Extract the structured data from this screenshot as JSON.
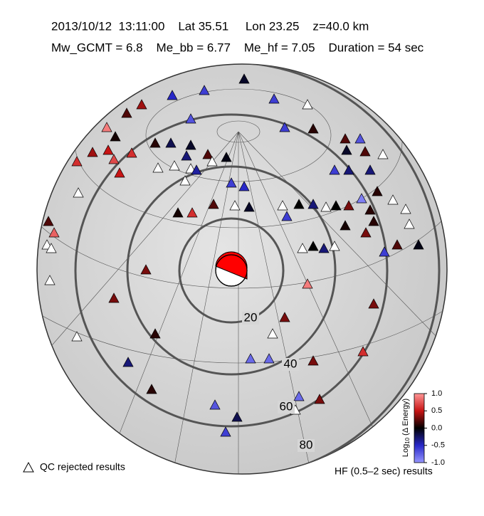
{
  "header": {
    "line1": "2013/10/12  13:11:00    Lat 35.51     Lon 23.25    z=40.0 km",
    "line2": "Mw_GCMT = 6.8    Me_bb = 6.77    Me_hf = 7.05    Duration = 54 sec"
  },
  "distance_rings": {
    "values": [
      20,
      40,
      60,
      80
    ]
  },
  "colorbar": {
    "label_main": "Log",
    "label_sub": "10",
    "label_rest": " (Δ Energy)",
    "ticks": [
      {
        "value": 1,
        "label": "1.0"
      },
      {
        "value": 0.5,
        "label": "0.5"
      },
      {
        "value": 0,
        "label": "0.0"
      },
      {
        "value": -0.5,
        "label": "-0.5"
      },
      {
        "value": -1,
        "label": "-1.0"
      }
    ]
  },
  "legend": {
    "qc": "QC rejected results",
    "hf": "HF (0.5–2 sec) results"
  },
  "stations": {
    "values": [
      -0.5,
      -0.6,
      -0.1,
      -0.6,
      null,
      0.2,
      0.4,
      -0.7,
      0.9,
      0.05,
      -0.6,
      0.1,
      0.2,
      -0.7,
      0.4,
      0.5,
      0.7,
      0.6,
      0.6,
      0.1,
      -0.2,
      -0.1,
      0.2,
      -0.3,
      -0.05,
      -0.1,
      0.2,
      null,
      null,
      null,
      null,
      -0.4,
      null,
      0.5,
      -0.6,
      -0.3,
      -0.3,
      null,
      null,
      -0.6,
      -0.5,
      0.1,
      null,
      -0.9,
      0.2,
      null,
      null,
      0.0,
      -0.3,
      null,
      0.0,
      0.3,
      0.1,
      null,
      0.6,
      0.2,
      0.8,
      0.05,
      -0.1,
      0.1,
      null,
      -0.6,
      0.05,
      0.3,
      null,
      null,
      null,
      0.0,
      -0.3,
      null,
      -0.6,
      0.2,
      -0.05,
      0.3,
      null,
      0.9,
      0.3,
      0.3,
      0.3,
      0.1,
      null,
      null,
      -0.3,
      -0.8,
      -0.8,
      0.3,
      0.6,
      0.1,
      -0.7,
      -0.8,
      0.3,
      -0.2,
      null,
      -0.6
    ]
  }
}
